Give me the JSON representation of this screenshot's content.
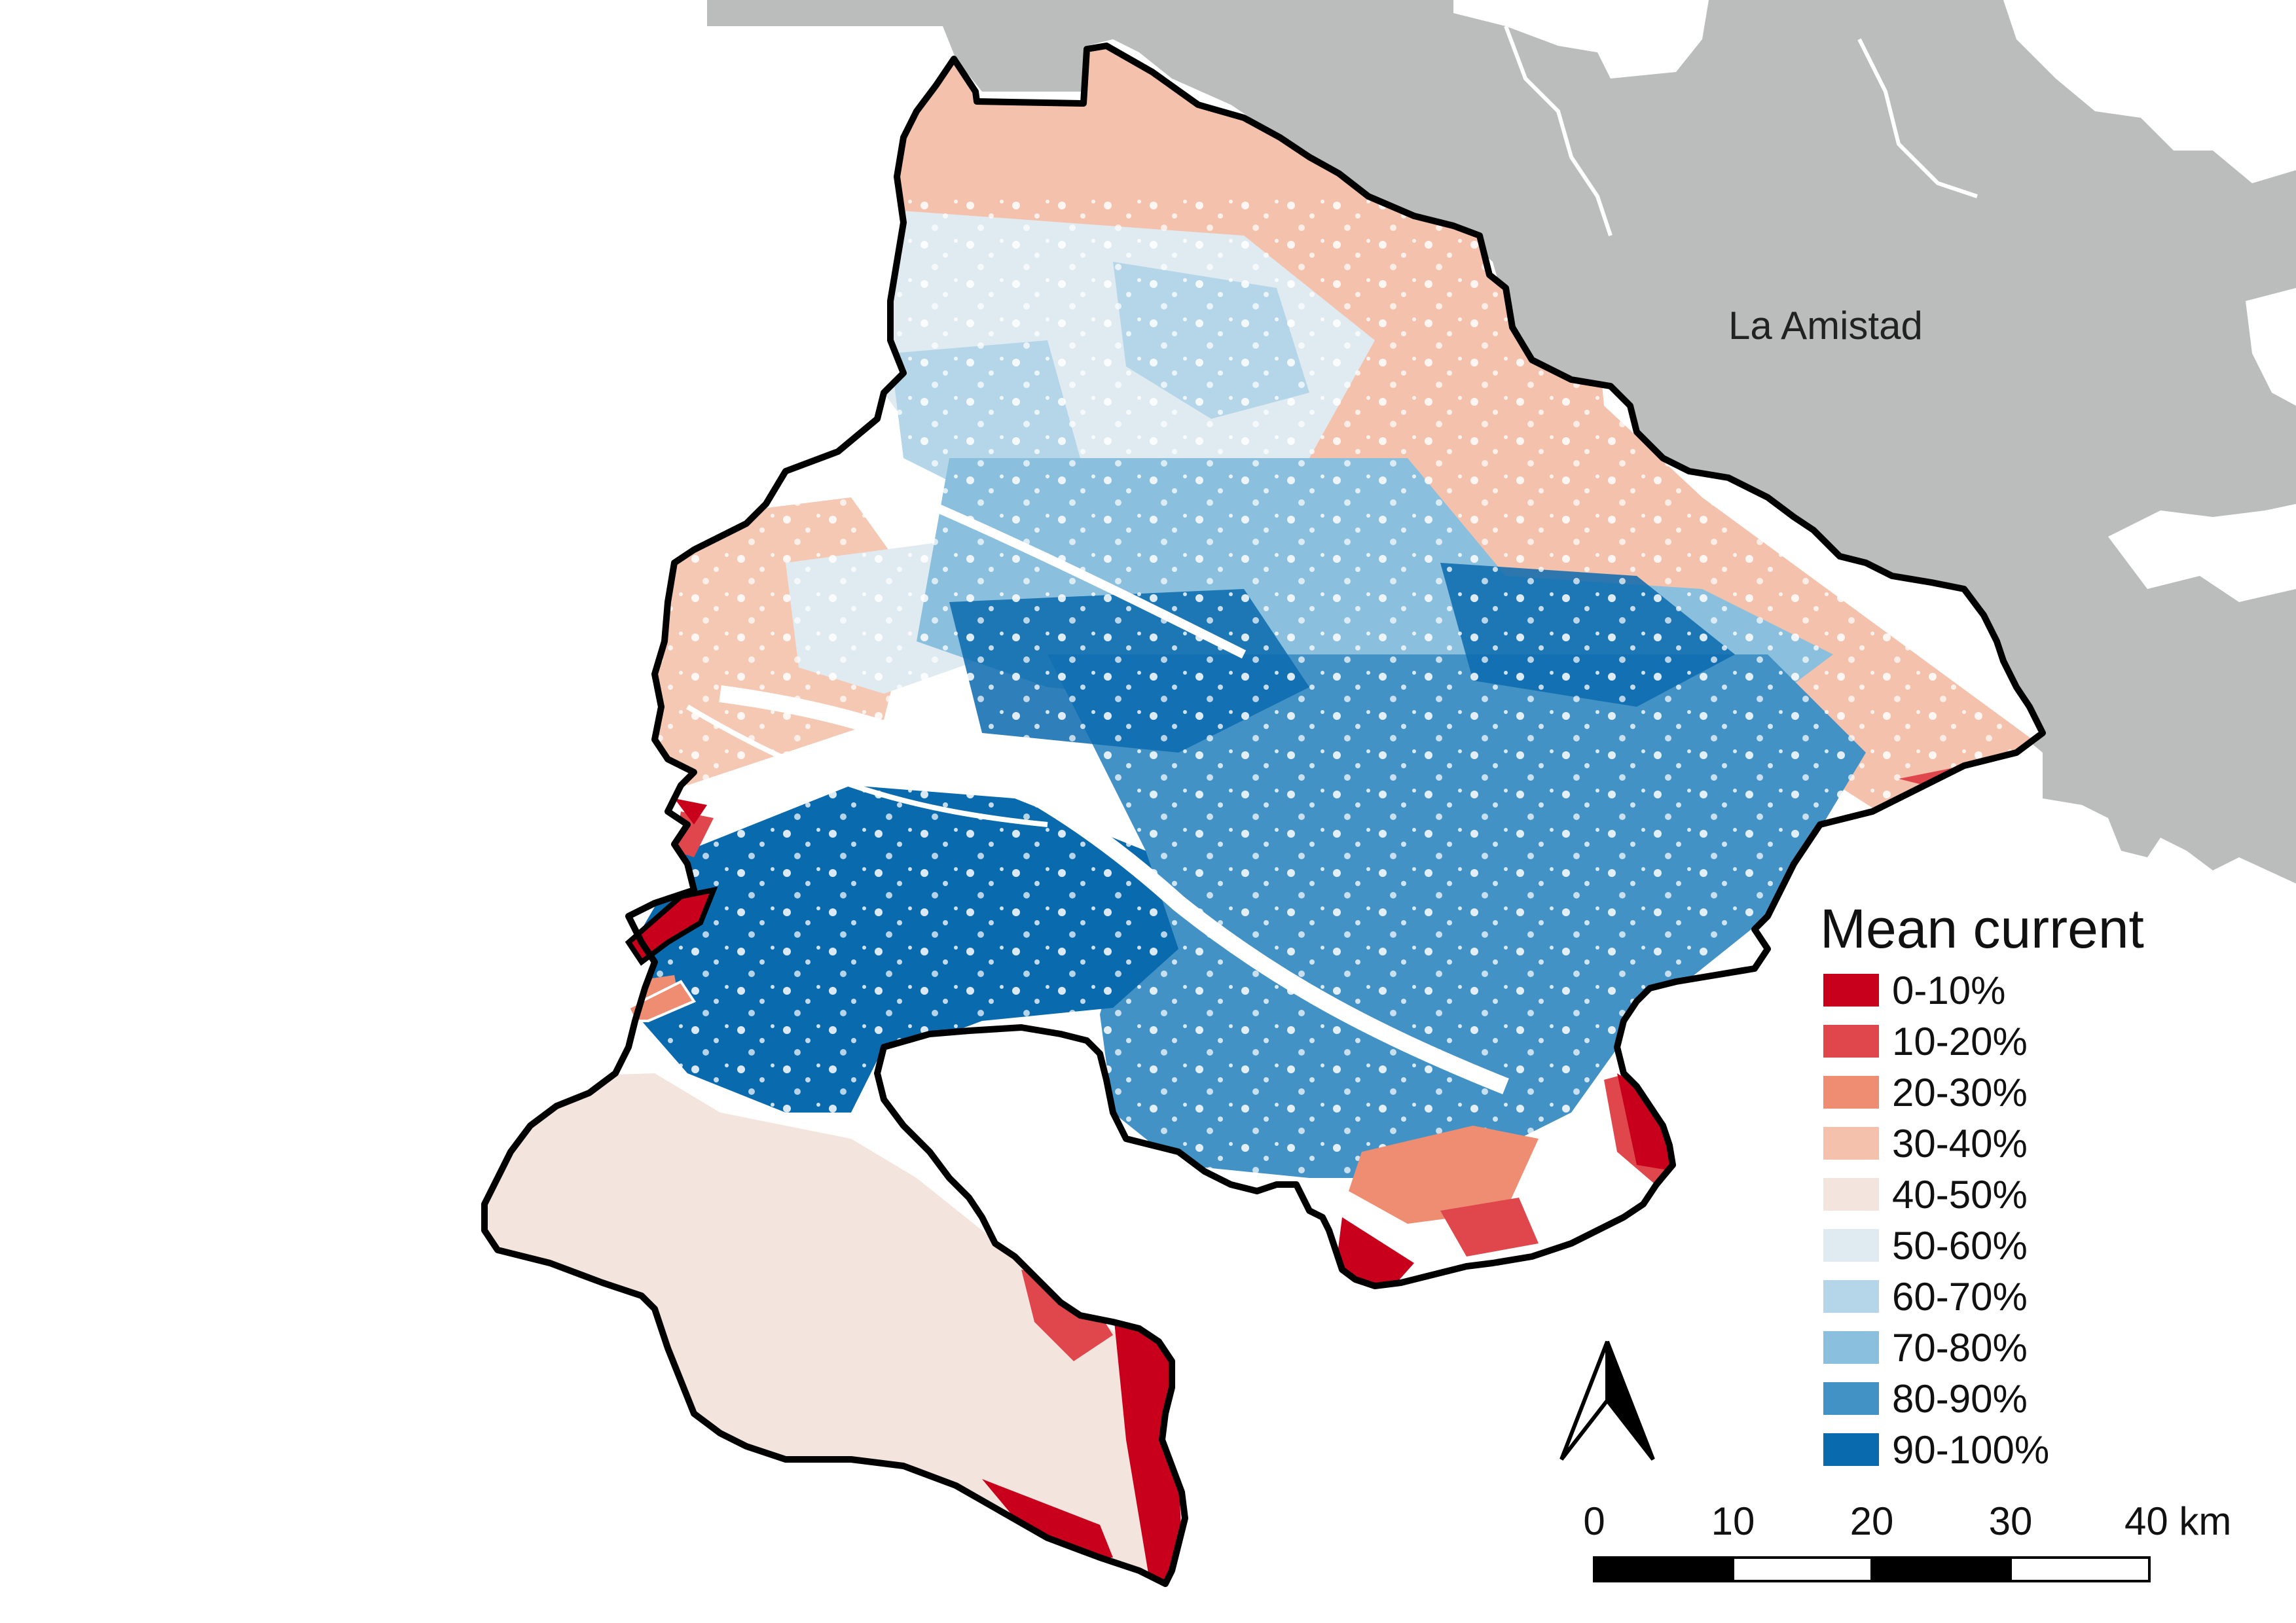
{
  "map": {
    "place_label": "La Amistad",
    "neighbor_fill": "#bbbcbc",
    "boundary_color": "#000000"
  },
  "legend": {
    "title": "Mean current",
    "classes": [
      {
        "label": "0-10%",
        "color": "#c8001c"
      },
      {
        "label": "10-20%",
        "color": "#e0474c"
      },
      {
        "label": "20-30%",
        "color": "#ee8d72"
      },
      {
        "label": "30-40%",
        "color": "#f4c2ac"
      },
      {
        "label": "40-50%",
        "color": "#f4e4de"
      },
      {
        "label": "50-60%",
        "color": "#e0eaf1"
      },
      {
        "label": "60-70%",
        "color": "#b5d6e9"
      },
      {
        "label": "70-80%",
        "color": "#8abfde"
      },
      {
        "label": "80-90%",
        "color": "#4392c6"
      },
      {
        "label": "90-100%",
        "color": "#0a6aae"
      }
    ]
  },
  "north_arrow": {
    "icon": "north-arrow-icon"
  },
  "scale_bar": {
    "labels": [
      "0",
      "10",
      "20",
      "30",
      "40 km"
    ]
  }
}
